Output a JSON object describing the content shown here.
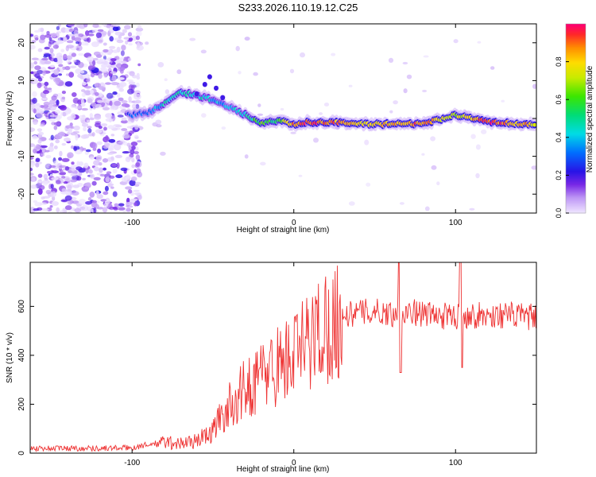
{
  "figure_title": "S233.2026.110.19.12.C25",
  "chart_data": [
    {
      "type": "heatmap",
      "title": "S233.2026.110.19.12.C25",
      "xlabel": "Height of straight line (km)",
      "ylabel": "Frequency (Hz)",
      "xlim": [
        -163,
        150
      ],
      "ylim": [
        -25,
        25
      ],
      "xticks": [
        -100,
        0,
        100
      ],
      "yticks": [
        -20,
        -10,
        0,
        10,
        20
      ],
      "colorbar": {
        "label": "Normalized spectral amplitude",
        "range": [
          0.0,
          1.0
        ],
        "ticks": [
          0.0,
          0.2,
          0.4,
          0.6,
          0.8
        ],
        "colormap": "rainbow"
      },
      "description": "Scattered low-amplitude noise for heights below -100 km; a coherent ridge from about -100 km (0 Hz) rising to about 8 Hz near -65 km, descending to about -1 Hz near -20 km, then flat near 0 Hz with peak amplitude (~0.9-1.0) beyond 0 km up to 150 km.",
      "ridge_frequency_hz": {
        "x": [
          -100,
          -90,
          -80,
          -70,
          -60,
          -50,
          -40,
          -30,
          -20,
          -10,
          0,
          10,
          20,
          50,
          80,
          100,
          120,
          150
        ],
        "y": [
          1,
          1.5,
          4,
          7,
          6,
          5,
          3,
          1,
          -1.5,
          -0.5,
          -1.5,
          -1,
          -1,
          -1.5,
          -1.5,
          1,
          -1,
          -1.5
        ]
      },
      "ridge_amplitude": {
        "x": [
          -100,
          -90,
          -80,
          -70,
          -60,
          -50,
          -40,
          -30,
          -20,
          -10,
          0,
          10,
          20,
          50,
          80,
          100,
          120,
          150
        ],
        "y": [
          0.25,
          0.3,
          0.45,
          0.5,
          0.45,
          0.4,
          0.35,
          0.45,
          0.6,
          0.55,
          0.85,
          0.95,
          0.9,
          0.8,
          0.9,
          0.7,
          0.95,
          0.8
        ]
      }
    },
    {
      "type": "line",
      "xlabel": "Height of straight line (km)",
      "ylabel": "SNR (10 * v/v)",
      "xlim": [
        -163,
        150
      ],
      "ylim": [
        0,
        780
      ],
      "xticks": [
        -100,
        0,
        100
      ],
      "yticks": [
        0,
        200,
        400,
        600
      ],
      "color": "#ee3333",
      "series": [
        {
          "name": "SNR",
          "x": [
            -163,
            -140,
            -120,
            -100,
            -90,
            -80,
            -70,
            -60,
            -50,
            -45,
            -40,
            -35,
            -30,
            -25,
            -20,
            -15,
            -10,
            -5,
            0,
            5,
            10,
            15,
            20,
            25,
            30,
            40,
            50,
            60,
            70,
            80,
            90,
            100,
            110,
            120,
            130,
            140,
            150
          ],
          "y": [
            20,
            20,
            20,
            22,
            35,
            45,
            40,
            50,
            90,
            150,
            190,
            230,
            260,
            290,
            320,
            340,
            360,
            380,
            400,
            430,
            460,
            500,
            520,
            540,
            560,
            575,
            580,
            570,
            580,
            570,
            560,
            560,
            565,
            560,
            565,
            560,
            555
          ],
          "spikes": [
            {
              "x": 65,
              "y": 780
            },
            {
              "x": 66,
              "y": 330
            },
            {
              "x": 103,
              "y": 780
            },
            {
              "x": 104,
              "y": 350
            }
          ]
        }
      ]
    }
  ]
}
